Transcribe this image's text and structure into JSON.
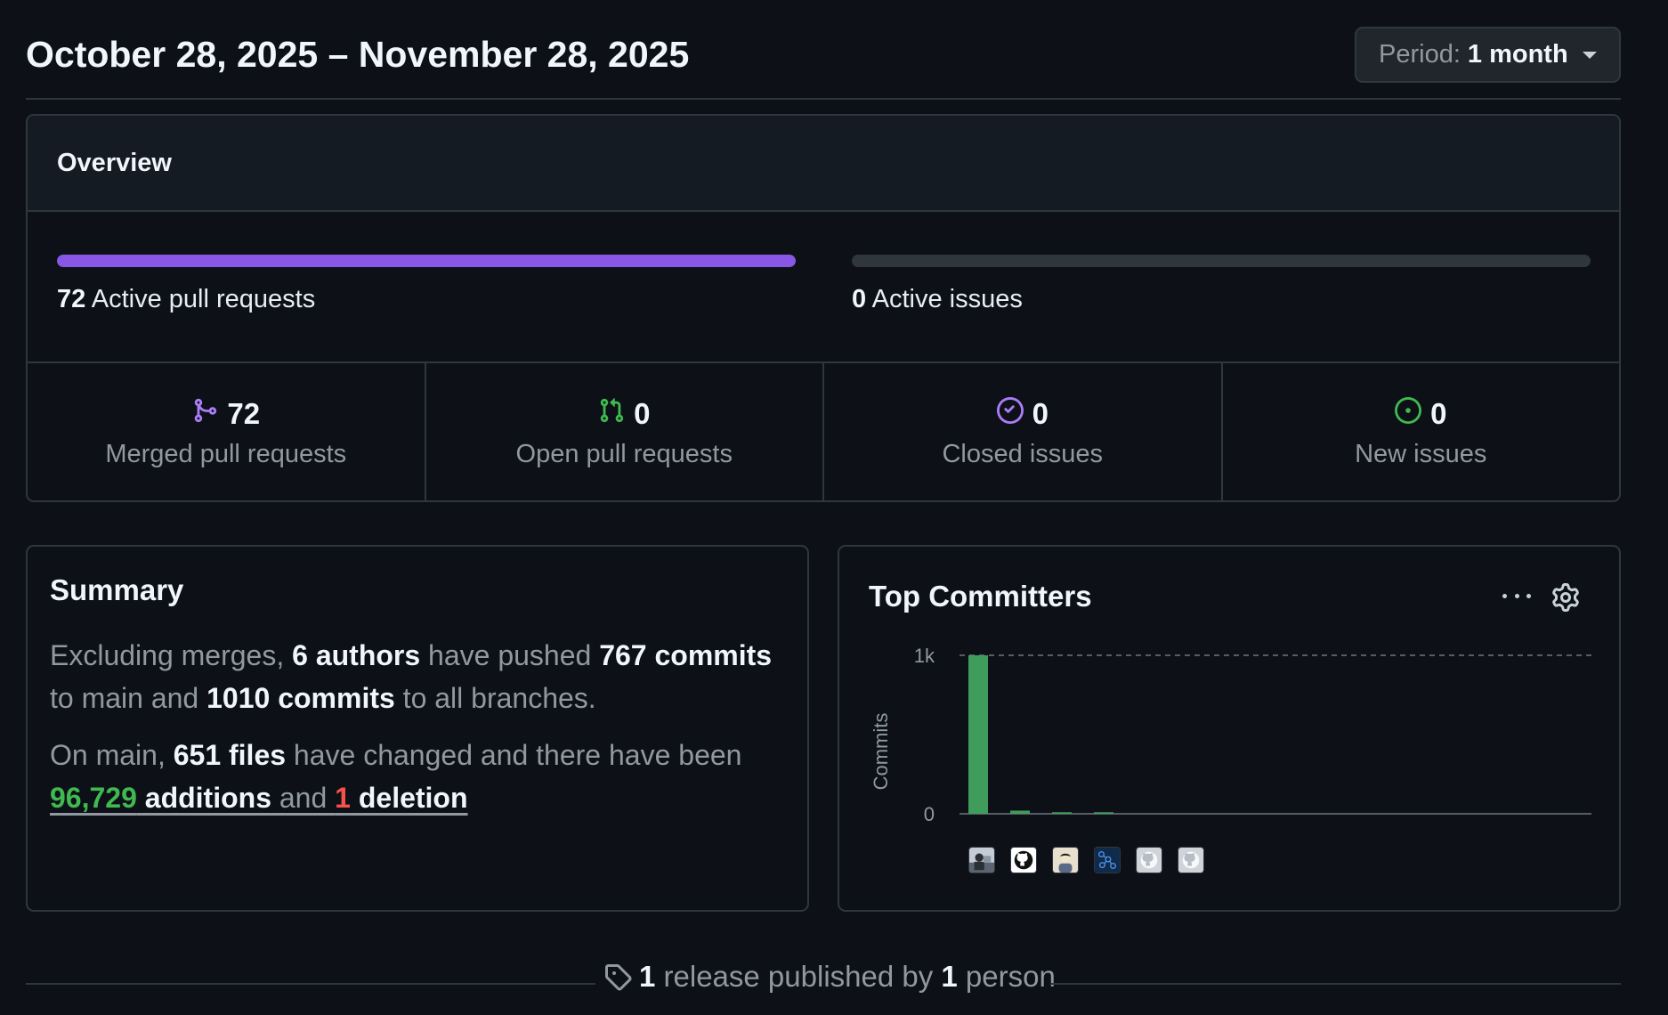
{
  "header": {
    "date_range": "October 28, 2025 – November 28, 2025",
    "period_label": "Period:",
    "period_value": "1 month"
  },
  "overview": {
    "title": "Overview",
    "pull_requests": {
      "count": "72",
      "label": "Active pull requests",
      "fill_fraction": 1.0,
      "color": "#8957e5"
    },
    "issues": {
      "count": "0",
      "label": "Active issues",
      "fill_fraction": 0.0,
      "color": "#30363d"
    },
    "stats": [
      {
        "value": "72",
        "label": "Merged pull requests",
        "icon": "merged-pr-icon",
        "color": "#ab7df8"
      },
      {
        "value": "0",
        "label": "Open pull requests",
        "icon": "open-pr-icon",
        "color": "#3fb950"
      },
      {
        "value": "0",
        "label": "Closed issues",
        "icon": "closed-issue-icon",
        "color": "#ab7df8"
      },
      {
        "value": "0",
        "label": "New issues",
        "icon": "new-issue-icon",
        "color": "#3fb950"
      }
    ]
  },
  "summary": {
    "title": "Summary",
    "p1": {
      "t1": "Excluding merges, ",
      "authors": "6 authors",
      "t2": " have pushed ",
      "main_commits": "767 commits",
      "t3": " to main and ",
      "all_commits": "1010 commits",
      "t4": " to all branches."
    },
    "p2": {
      "t1": "On main, ",
      "files": "651 files",
      "t2": " have changed and there have been ",
      "additions_num": "96,729",
      "additions_word": " additions",
      "t3": " and ",
      "deletions_num": "1",
      "deletions_word": " deletion"
    }
  },
  "top_committers": {
    "title": "Top Committers",
    "avatars": [
      "avatar-photo",
      "github-octocat-icon",
      "avatar-illustration",
      "avatar-pattern",
      "github-default-icon",
      "github-default-icon"
    ]
  },
  "chart_data": {
    "type": "bar",
    "ylabel": "Commits",
    "yticks": [
      "1k",
      "0"
    ],
    "ylim": [
      0,
      1000
    ],
    "values": [
      1000,
      20,
      10,
      10,
      0,
      0
    ],
    "bar_color": "#3f9c5b",
    "grid": "dashed line at 1k"
  },
  "release": {
    "count": "1",
    "t1": " release published by ",
    "people": "1",
    "t2": " person"
  }
}
